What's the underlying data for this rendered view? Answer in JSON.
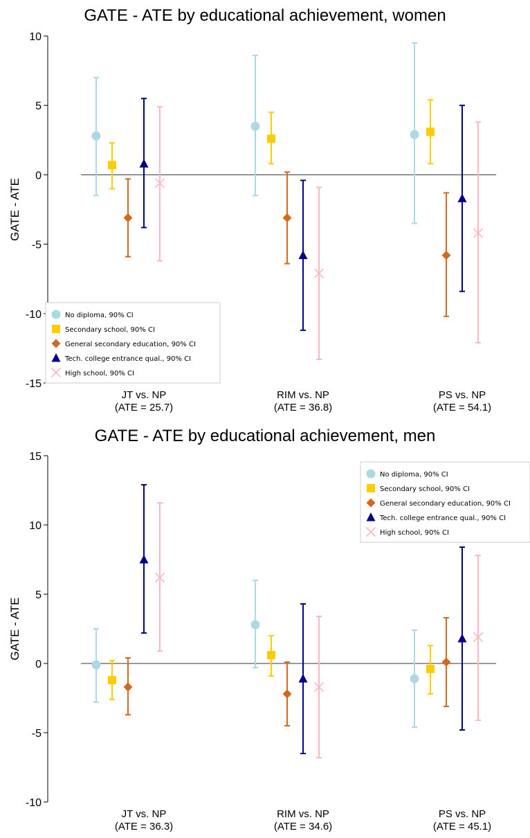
{
  "colors": {
    "no_diploma": "#add8e6",
    "secondary_school": "#ffcc00",
    "general_secondary": "#d2691e",
    "tech_college": "#00008b",
    "high_school": "#ffb6c1"
  },
  "chart_data": [
    {
      "type": "scatter",
      "title": "GATE - ATE by educational achievement, women",
      "ylabel": "GATE - ATE",
      "xlabel": "",
      "ylim": [
        -15,
        10
      ],
      "yticks": [
        10,
        5,
        0,
        -5,
        -10,
        -15
      ],
      "categories": [
        {
          "line1": "JT vs. NP",
          "line2": "(ATE = 25.7)"
        },
        {
          "line1": "RIM vs. NP",
          "line2": "(ATE = 36.8)"
        },
        {
          "line1": "PS vs. NP",
          "line2": "(ATE = 54.1)"
        }
      ],
      "legend_position": "bottom-left",
      "series": [
        {
          "name": "No diploma, 90% CI",
          "marker": "circle",
          "color_key": "no_diploma",
          "points": [
            {
              "y": 2.8,
              "lo": -1.5,
              "hi": 7.0
            },
            {
              "y": 3.5,
              "lo": -1.5,
              "hi": 8.6
            },
            {
              "y": 2.9,
              "lo": -3.5,
              "hi": 9.5
            }
          ]
        },
        {
          "name": "Secondary school, 90% CI",
          "marker": "square",
          "color_key": "secondary_school",
          "points": [
            {
              "y": 0.7,
              "lo": -1.0,
              "hi": 2.3
            },
            {
              "y": 2.6,
              "lo": 0.8,
              "hi": 4.5
            },
            {
              "y": 3.1,
              "lo": 0.8,
              "hi": 5.4
            }
          ]
        },
        {
          "name": "General secondary education, 90% CI",
          "marker": "diamond",
          "color_key": "general_secondary",
          "points": [
            {
              "y": -3.1,
              "lo": -5.9,
              "hi": -0.3
            },
            {
              "y": -3.1,
              "lo": -6.4,
              "hi": 0.2
            },
            {
              "y": -5.8,
              "lo": -10.2,
              "hi": -1.3
            }
          ]
        },
        {
          "name": "Tech. college entrance qual., 90% CI",
          "marker": "triangle",
          "color_key": "tech_college",
          "points": [
            {
              "y": 0.8,
              "lo": -3.8,
              "hi": 5.5
            },
            {
              "y": -5.8,
              "lo": -11.2,
              "hi": -0.4
            },
            {
              "y": -1.7,
              "lo": -8.4,
              "hi": 5.0
            }
          ]
        },
        {
          "name": "High school, 90% CI",
          "marker": "x",
          "color_key": "high_school",
          "points": [
            {
              "y": -0.6,
              "lo": -6.2,
              "hi": 4.9
            },
            {
              "y": -7.1,
              "lo": -13.3,
              "hi": -0.9
            },
            {
              "y": -4.2,
              "lo": -12.1,
              "hi": 3.8
            }
          ]
        }
      ]
    },
    {
      "type": "scatter",
      "title": "GATE - ATE by educational achievement, men",
      "ylabel": "GATE - ATE",
      "xlabel": "",
      "ylim": [
        -10,
        15
      ],
      "yticks": [
        15,
        10,
        5,
        0,
        -5,
        -10
      ],
      "categories": [
        {
          "line1": "JT vs. NP",
          "line2": "(ATE = 36.3)"
        },
        {
          "line1": "RIM vs. NP",
          "line2": "(ATE = 34.6)"
        },
        {
          "line1": "PS vs. NP",
          "line2": "(ATE = 45.1)"
        }
      ],
      "legend_position": "top-right",
      "series": [
        {
          "name": "No diploma, 90% CI",
          "marker": "circle",
          "color_key": "no_diploma",
          "points": [
            {
              "y": -0.1,
              "lo": -2.8,
              "hi": 2.5
            },
            {
              "y": 2.8,
              "lo": -0.3,
              "hi": 6.0
            },
            {
              "y": -1.1,
              "lo": -4.6,
              "hi": 2.4
            }
          ]
        },
        {
          "name": "Secondary school, 90% CI",
          "marker": "square",
          "color_key": "secondary_school",
          "points": [
            {
              "y": -1.2,
              "lo": -2.6,
              "hi": 0.2
            },
            {
              "y": 0.6,
              "lo": -0.9,
              "hi": 2.0
            },
            {
              "y": -0.4,
              "lo": -2.2,
              "hi": 1.3
            }
          ]
        },
        {
          "name": "General secondary education, 90% CI",
          "marker": "diamond",
          "color_key": "general_secondary",
          "points": [
            {
              "y": -1.7,
              "lo": -3.7,
              "hi": 0.4
            },
            {
              "y": -2.2,
              "lo": -4.5,
              "hi": 0.1
            },
            {
              "y": 0.1,
              "lo": -3.1,
              "hi": 3.3
            }
          ]
        },
        {
          "name": "Tech. college entrance qual., 90% CI",
          "marker": "triangle",
          "color_key": "tech_college",
          "points": [
            {
              "y": 7.5,
              "lo": 2.2,
              "hi": 12.9
            },
            {
              "y": -1.1,
              "lo": -6.5,
              "hi": 4.3
            },
            {
              "y": 1.8,
              "lo": -4.8,
              "hi": 8.4
            }
          ]
        },
        {
          "name": "High school, 90% CI",
          "marker": "x",
          "color_key": "high_school",
          "points": [
            {
              "y": 6.2,
              "lo": 0.9,
              "hi": 11.6
            },
            {
              "y": -1.7,
              "lo": -6.8,
              "hi": 3.4
            },
            {
              "y": 1.9,
              "lo": -4.1,
              "hi": 7.8
            }
          ]
        }
      ]
    }
  ]
}
